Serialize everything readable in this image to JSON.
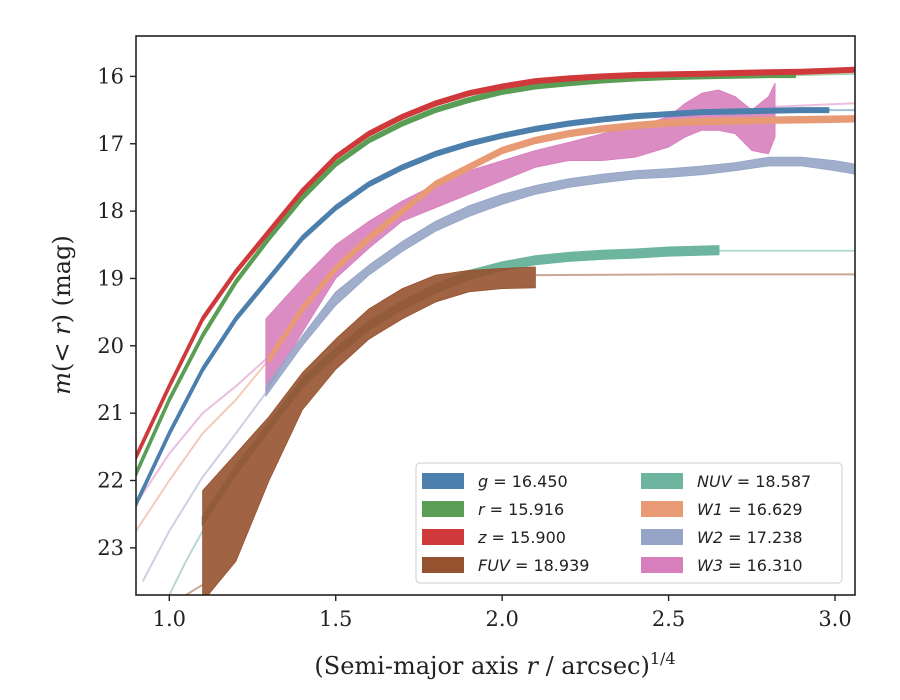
{
  "chart_data": {
    "type": "line",
    "title": "",
    "xlabel": "(Semi-major axis r / arcsec)^1/4",
    "ylabel": "m(< r) (mag)",
    "xlim": [
      0.9,
      3.06
    ],
    "ylim": [
      23.7,
      15.4
    ],
    "y_inverted": true,
    "x_ticks": [
      "1.0",
      "1.5",
      "2.0",
      "2.5",
      "3.0"
    ],
    "x_tick_values": [
      1.0,
      1.5,
      2.0,
      2.5,
      3.0
    ],
    "y_ticks": [
      "16",
      "17",
      "18",
      "19",
      "20",
      "21",
      "22",
      "23"
    ],
    "y_tick_values": [
      16,
      17,
      18,
      19,
      20,
      21,
      22,
      23
    ],
    "grid": false,
    "legend_position": "lower-right",
    "series": [
      {
        "name": "g",
        "legend_value": "16.450",
        "color": "#4c7fab",
        "band_half_width": 0.03,
        "x": [
          0.9,
          1.0,
          1.1,
          1.2,
          1.3,
          1.4,
          1.5,
          1.6,
          1.7,
          1.8,
          1.9,
          2.0,
          2.1,
          2.2,
          2.3,
          2.4,
          2.5,
          2.6,
          2.7,
          2.8,
          2.9,
          2.98
        ],
        "y": [
          22.35,
          21.3,
          20.35,
          19.6,
          19.0,
          18.4,
          17.95,
          17.6,
          17.35,
          17.15,
          17.0,
          16.88,
          16.78,
          16.7,
          16.64,
          16.59,
          16.56,
          16.53,
          16.52,
          16.51,
          16.5,
          16.5
        ]
      },
      {
        "name": "r",
        "legend_value": "15.916",
        "color": "#5a9e55",
        "band_half_width": 0.03,
        "x": [
          0.9,
          1.0,
          1.1,
          1.2,
          1.3,
          1.4,
          1.5,
          1.6,
          1.7,
          1.8,
          1.9,
          2.0,
          2.1,
          2.2,
          2.3,
          2.4,
          2.5,
          2.6,
          2.7,
          2.8,
          2.88
        ],
        "y": [
          21.9,
          20.8,
          19.85,
          19.05,
          18.4,
          17.8,
          17.3,
          16.95,
          16.7,
          16.5,
          16.35,
          16.23,
          16.15,
          16.1,
          16.06,
          16.03,
          16.01,
          16.0,
          15.99,
          15.98,
          15.98
        ]
      },
      {
        "name": "z",
        "legend_value": "15.900",
        "color": "#d0393b",
        "band_half_width": 0.03,
        "x": [
          0.9,
          1.0,
          1.1,
          1.2,
          1.3,
          1.4,
          1.5,
          1.6,
          1.7,
          1.8,
          1.9,
          2.0,
          2.1,
          2.2,
          2.3,
          2.4,
          2.5,
          2.6,
          2.7,
          2.8,
          2.9,
          3.06
        ],
        "y": [
          21.65,
          20.6,
          19.6,
          18.9,
          18.3,
          17.7,
          17.2,
          16.85,
          16.6,
          16.4,
          16.25,
          16.15,
          16.07,
          16.03,
          16.0,
          15.98,
          15.97,
          15.96,
          15.95,
          15.94,
          15.93,
          15.9
        ]
      },
      {
        "name": "FUV",
        "legend_value": "18.939",
        "color": "#96522f",
        "x": [
          1.1,
          1.2,
          1.3,
          1.4,
          1.5,
          1.6,
          1.7,
          1.8,
          1.9,
          2.0,
          2.1
        ],
        "y_low": [
          22.15,
          21.6,
          21.05,
          20.4,
          19.9,
          19.45,
          19.15,
          18.95,
          18.88,
          18.85,
          18.83
        ],
        "y_high": [
          23.8,
          23.2,
          22.0,
          20.95,
          20.35,
          19.9,
          19.6,
          19.35,
          19.2,
          19.15,
          19.14
        ]
      },
      {
        "name": "NUV",
        "legend_value": "18.587",
        "color": "#6db59e",
        "band_half_width": 0.06,
        "x": [
          1.1,
          1.2,
          1.3,
          1.4,
          1.5,
          1.6,
          1.7,
          1.8,
          1.9,
          2.0,
          2.1,
          2.2,
          2.3,
          2.4,
          2.5,
          2.65
        ],
        "y": [
          22.6,
          21.85,
          21.2,
          20.55,
          20.1,
          19.7,
          19.4,
          19.15,
          18.95,
          18.82,
          18.73,
          18.68,
          18.65,
          18.63,
          18.6,
          18.58
        ]
      },
      {
        "name": "W1",
        "legend_value": "16.629",
        "color": "#e89a74",
        "band_half_width": 0.04,
        "x": [
          1.3,
          1.4,
          1.5,
          1.6,
          1.7,
          1.8,
          1.9,
          2.0,
          2.1,
          2.2,
          2.3,
          2.4,
          2.5,
          2.6,
          2.7,
          2.8,
          2.95,
          3.06
        ],
        "y": [
          20.2,
          19.45,
          18.85,
          18.4,
          18.0,
          17.6,
          17.35,
          17.1,
          16.95,
          16.85,
          16.78,
          16.73,
          16.69,
          16.67,
          16.66,
          16.65,
          16.64,
          16.63
        ]
      },
      {
        "name": "W2",
        "legend_value": "17.238",
        "color": "#96a5c7",
        "x": [
          1.29,
          1.4,
          1.5,
          1.6,
          1.7,
          1.8,
          1.9,
          2.0,
          2.1,
          2.2,
          2.3,
          2.4,
          2.5,
          2.6,
          2.7,
          2.8,
          2.9,
          3.0,
          3.06
        ],
        "y_low": [
          20.6,
          19.85,
          19.2,
          18.8,
          18.45,
          18.15,
          17.92,
          17.75,
          17.62,
          17.52,
          17.45,
          17.4,
          17.37,
          17.33,
          17.28,
          17.2,
          17.2,
          17.25,
          17.3
        ],
        "y_high": [
          20.75,
          20.0,
          19.4,
          18.95,
          18.6,
          18.3,
          18.08,
          17.9,
          17.75,
          17.65,
          17.58,
          17.52,
          17.5,
          17.46,
          17.4,
          17.33,
          17.33,
          17.4,
          17.45
        ]
      },
      {
        "name": "W3",
        "legend_value": "16.310",
        "color": "#d77fbd",
        "x": [
          1.29,
          1.4,
          1.5,
          1.6,
          1.7,
          1.8,
          1.9,
          2.0,
          2.1,
          2.2,
          2.3,
          2.4,
          2.5,
          2.55,
          2.6,
          2.65,
          2.7,
          2.75,
          2.8,
          2.82
        ],
        "y_low": [
          19.6,
          19.0,
          18.5,
          18.15,
          17.85,
          17.6,
          17.4,
          17.25,
          17.1,
          16.98,
          16.85,
          16.75,
          16.6,
          16.4,
          16.25,
          16.2,
          16.3,
          16.5,
          16.3,
          16.1
        ],
        "y_high": [
          20.7,
          19.8,
          19.0,
          18.55,
          18.15,
          17.95,
          17.75,
          17.55,
          17.35,
          17.25,
          17.25,
          17.2,
          17.05,
          16.9,
          16.8,
          16.8,
          16.85,
          17.1,
          17.15,
          16.9
        ]
      }
    ],
    "extrapolations": [
      {
        "series": "g",
        "x": [
          2.98,
          3.06
        ],
        "y": [
          16.5,
          16.5
        ]
      },
      {
        "series": "r",
        "x": [
          2.88,
          3.06
        ],
        "y": [
          15.98,
          15.96
        ]
      },
      {
        "series": "FUV",
        "x": [
          0.95,
          1.0,
          1.05,
          1.1
        ],
        "y": [
          24.2,
          23.95,
          23.7,
          23.55
        ]
      },
      {
        "series": "FUV",
        "x": [
          2.1,
          2.5,
          3.06
        ],
        "y": [
          18.95,
          18.94,
          18.94
        ]
      },
      {
        "series": "NUV",
        "x": [
          1.0,
          1.05,
          1.1
        ],
        "y": [
          23.7,
          23.2,
          22.75
        ]
      },
      {
        "series": "NUV",
        "x": [
          2.65,
          3.06
        ],
        "y": [
          18.59,
          18.59
        ]
      },
      {
        "series": "W1",
        "x": [
          0.9,
          1.0,
          1.1,
          1.2,
          1.3
        ],
        "y": [
          22.75,
          22.0,
          21.3,
          20.8,
          20.2
        ]
      },
      {
        "series": "W2",
        "x": [
          0.92,
          1.0,
          1.1,
          1.2,
          1.29
        ],
        "y": [
          23.5,
          22.75,
          21.95,
          21.3,
          20.7
        ]
      },
      {
        "series": "W3",
        "x": [
          0.9,
          1.0,
          1.1,
          1.2,
          1.29
        ],
        "y": [
          22.35,
          21.6,
          21.0,
          20.6,
          20.2
        ]
      },
      {
        "series": "W3",
        "x": [
          2.82,
          3.06
        ],
        "y": [
          16.45,
          16.4
        ]
      }
    ]
  }
}
